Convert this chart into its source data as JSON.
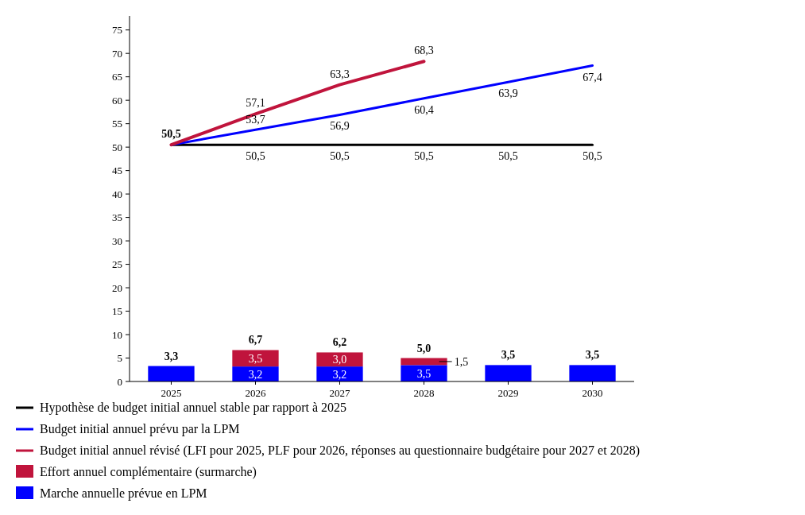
{
  "chart_data": {
    "type": "bar",
    "stacked": true,
    "categories": [
      "2025",
      "2026",
      "2027",
      "2028",
      "2029",
      "2030"
    ],
    "ylim": [
      0,
      78
    ],
    "yticks": [
      0,
      5,
      10,
      15,
      20,
      25,
      30,
      35,
      40,
      45,
      50,
      55,
      60,
      65,
      70,
      75
    ],
    "grid": false,
    "legend": "bottom",
    "series": [
      {
        "name": "Hypothèse de budget initial annuel stable par rapport à 2025",
        "type": "line",
        "color": "#000000",
        "values": [
          50.5,
          50.5,
          50.5,
          50.5,
          50.5,
          50.5
        ],
        "value_labels": [
          null,
          "50,5",
          "50,5",
          "50,5",
          "50,5",
          "50,5"
        ]
      },
      {
        "name": "Budget initial annuel prévu par la LPM",
        "type": "line",
        "color": "#0000ff",
        "values": [
          50.5,
          53.7,
          56.9,
          60.4,
          63.9,
          67.4
        ],
        "value_labels": [
          null,
          "53,7",
          "56,9",
          "60,4",
          "63,9",
          "67,4"
        ]
      },
      {
        "name": "Budget initial annuel révisé (LFI pour 2025, PLF pour 2026, réponses au questionnaire budgétaire pour 2027 et 2028)",
        "type": "line",
        "color": "#c0143c",
        "values": [
          50.5,
          57.1,
          63.3,
          68.3,
          null,
          null
        ],
        "value_labels": [
          "50,5",
          "57,1",
          "63,3",
          "68,3",
          null,
          null
        ]
      },
      {
        "name": "Marche annuelle prévue en LPM",
        "color": "#0000ff",
        "values": [
          3.3,
          3.2,
          3.2,
          3.5,
          3.5,
          3.5
        ],
        "value_labels": [
          null,
          "3,2",
          "3,2",
          "3,5",
          null,
          null
        ]
      },
      {
        "name": "Effort annuel complémentaire (surmarche)",
        "color": "#c0143c",
        "values": [
          null,
          3.5,
          3.0,
          1.5,
          null,
          null
        ],
        "value_labels": [
          null,
          "3,5",
          "3,0",
          "1,5",
          null,
          null
        ]
      }
    ],
    "totals": [
      "3,3",
      "6,7",
      "6,2",
      "5,0",
      "3,5",
      "3,5"
    ]
  }
}
